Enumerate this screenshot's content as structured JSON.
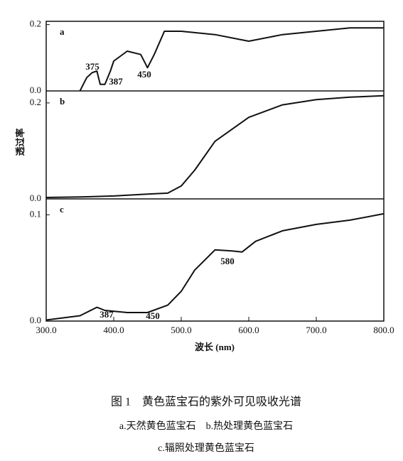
{
  "chart_data": [
    {
      "type": "line",
      "label": "a",
      "x": [
        300,
        330,
        350,
        360,
        368,
        375,
        380,
        387,
        395,
        400,
        420,
        440,
        450,
        460,
        475,
        500,
        550,
        600,
        650,
        700,
        750,
        800
      ],
      "values": [
        null,
        null,
        0.0,
        0.04,
        0.055,
        0.06,
        0.02,
        0.02,
        0.06,
        0.09,
        0.12,
        0.11,
        0.07,
        0.11,
        0.18,
        0.18,
        0.17,
        0.15,
        0.17,
        0.18,
        0.19,
        0.19
      ],
      "xlim": [
        300,
        800
      ],
      "ylim": [
        0,
        0.21
      ],
      "yticks": [
        0.2,
        {
          "value": 0,
          "label": "0.0"
        }
      ],
      "annotations": [
        "375",
        "387",
        "450"
      ]
    },
    {
      "type": "line",
      "label": "b",
      "x": [
        300,
        350,
        400,
        450,
        480,
        500,
        520,
        550,
        600,
        650,
        700,
        750,
        800
      ],
      "values": [
        0.003,
        0.004,
        0.006,
        0.01,
        0.012,
        0.027,
        0.06,
        0.12,
        0.17,
        0.196,
        0.207,
        0.212,
        0.215
      ],
      "xlim": [
        300,
        800
      ],
      "ylim": [
        0,
        0.225
      ],
      "yticks": [
        0.2,
        {
          "value": 0,
          "label": "0.0"
        }
      ],
      "annotations": []
    },
    {
      "type": "line",
      "label": "c",
      "x": [
        300,
        350,
        375,
        387,
        420,
        450,
        480,
        500,
        520,
        550,
        575,
        590,
        610,
        650,
        700,
        750,
        800
      ],
      "values": [
        0.001,
        0.005,
        0.013,
        0.01,
        0.008,
        0.008,
        0.015,
        0.028,
        0.048,
        0.067,
        0.066,
        0.065,
        0.075,
        0.085,
        0.091,
        0.095,
        0.101
      ],
      "xlim": [
        300,
        800
      ],
      "ylim": [
        0,
        0.115
      ],
      "yticks": [
        0.1,
        {
          "value": 0,
          "label": "0.0"
        }
      ],
      "xticks": [
        {
          "value": 300,
          "label": "300.0"
        },
        {
          "value": 400,
          "label": "400.0"
        },
        {
          "value": 500,
          "label": "500.0"
        },
        {
          "value": 600,
          "label": "600.0"
        },
        {
          "value": 700,
          "label": "700.0"
        },
        {
          "value": 800,
          "label": "800.0"
        }
      ],
      "annotations": [
        "387",
        "450",
        "580"
      ]
    }
  ],
  "y_label": "透过率",
  "x_label": "波长 (nm)",
  "caption": {
    "title": "图 1　黄色蓝宝石的紫外可见吸收光谱",
    "line1": "a.天然黄色蓝宝石　b.热处理黄色蓝宝石",
    "line2": "c.辐照处理黄色蓝宝石"
  }
}
